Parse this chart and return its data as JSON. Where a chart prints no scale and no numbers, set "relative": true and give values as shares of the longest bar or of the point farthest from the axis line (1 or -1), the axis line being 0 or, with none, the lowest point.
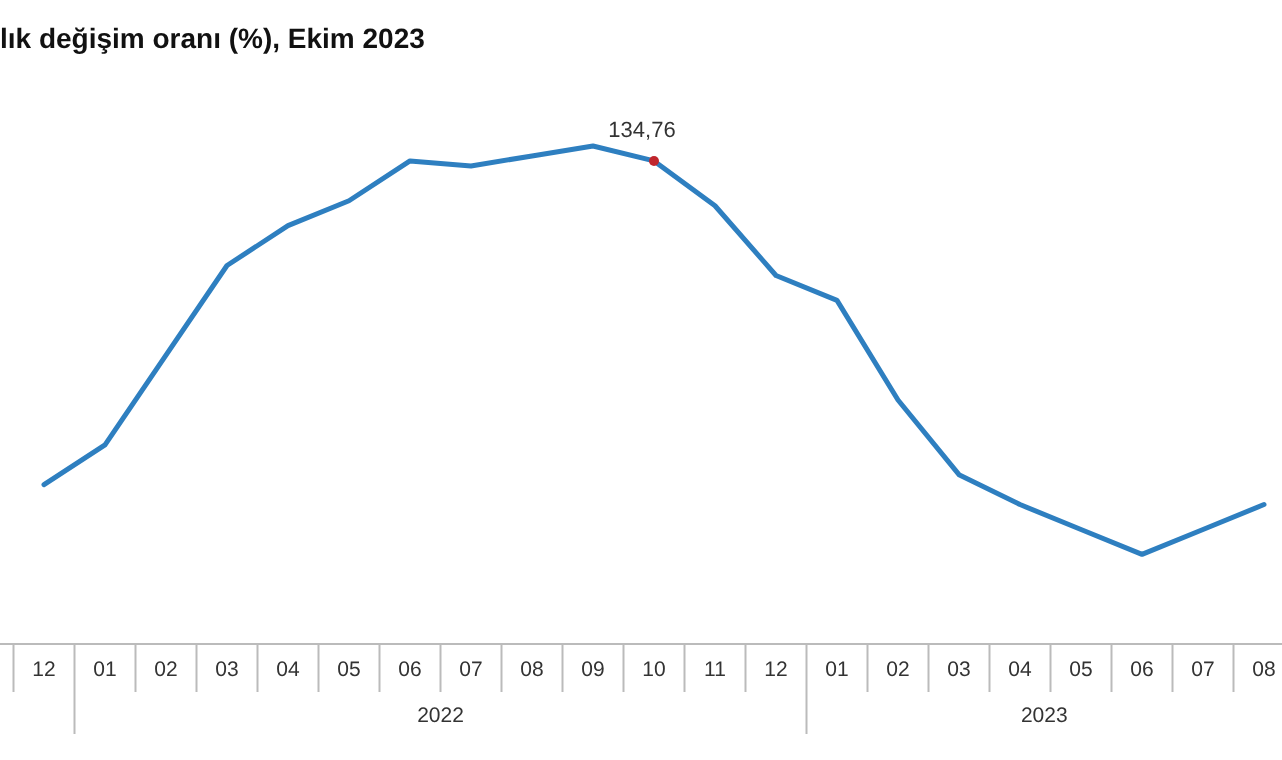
{
  "chart_data": {
    "type": "line",
    "title": "lık değişim oranı (%), Ekim 2023",
    "relative": true,
    "categories": [
      "12",
      "01",
      "02",
      "03",
      "04",
      "05",
      "06",
      "07",
      "08",
      "09",
      "10",
      "11",
      "12",
      "01",
      "02",
      "03",
      "04",
      "05",
      "06",
      "07",
      "08"
    ],
    "series": [
      {
        "color": "#2e7fc0",
        "values": [
          0.32,
          0.4,
          0.58,
          0.76,
          0.84,
          0.89,
          0.97,
          0.96,
          0.98,
          1,
          0.97,
          0.88,
          0.74,
          0.69,
          0.49,
          0.34,
          0.28,
          0.23,
          0.18,
          0.23,
          0.28
        ]
      }
    ],
    "annotations": [
      {
        "text": "134,76",
        "x": "10",
        "y": 0.97
      },
      "2022",
      "2023"
    ],
    "grid": false,
    "marker": "none",
    "line_style": "solid"
  }
}
